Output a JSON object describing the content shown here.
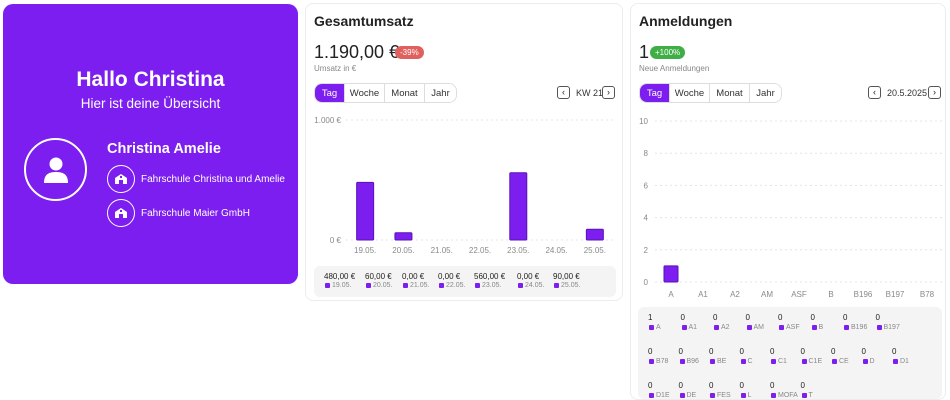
{
  "welcome": {
    "greeting": "Hallo Christina",
    "subtitle": "Hier ist deine Übersicht",
    "user_name": "Christina Amelie",
    "schools": [
      "Fahrschule Christina und Amelie",
      "Fahrschule Maier GmbH"
    ],
    "avatar_icon": "user-icon",
    "school_icon": "school-building-icon",
    "background_color": "#7c1ef0"
  },
  "revenue": {
    "title": "Gesamtumsatz",
    "value": "1.190,00 €",
    "change_badge": "-39%",
    "value_label": "Umsatz in €",
    "segments": [
      "Tag",
      "Woche",
      "Monat",
      "Jahr"
    ],
    "active_segment": "Tag",
    "period_label": "KW 21",
    "summary": [
      {
        "value": "480,00 €",
        "label": "19.05."
      },
      {
        "value": "60,00 €",
        "label": "20.05."
      },
      {
        "value": "0,00 €",
        "label": "21.05."
      },
      {
        "value": "0,00 €",
        "label": "22.05."
      },
      {
        "value": "560,00 €",
        "label": "23.05."
      },
      {
        "value": "0,00 €",
        "label": "24.05."
      },
      {
        "value": "90,00 €",
        "label": "25.05."
      }
    ]
  },
  "registrations": {
    "title": "Anmeldungen",
    "value": "1",
    "change_badge": "+100%",
    "value_label": "Neue Anmeldungen",
    "segments": [
      "Tag",
      "Woche",
      "Monat",
      "Jahr"
    ],
    "active_segment": "Tag",
    "period_label": "20.5.2025",
    "summary_rows": [
      [
        {
          "value": "1",
          "label": "A"
        },
        {
          "value": "0",
          "label": "A1"
        },
        {
          "value": "0",
          "label": "A2"
        },
        {
          "value": "0",
          "label": "AM"
        },
        {
          "value": "0",
          "label": "ASF"
        },
        {
          "value": "0",
          "label": "B"
        },
        {
          "value": "0",
          "label": "B196"
        },
        {
          "value": "0",
          "label": "B197"
        }
      ],
      [
        {
          "value": "0",
          "label": "B78"
        },
        {
          "value": "0",
          "label": "B96"
        },
        {
          "value": "0",
          "label": "BE"
        },
        {
          "value": "0",
          "label": "C"
        },
        {
          "value": "0",
          "label": "C1"
        },
        {
          "value": "0",
          "label": "C1E"
        },
        {
          "value": "0",
          "label": "CE"
        },
        {
          "value": "0",
          "label": "D"
        },
        {
          "value": "0",
          "label": "D1"
        }
      ],
      [
        {
          "value": "0",
          "label": "D1E"
        },
        {
          "value": "0",
          "label": "DE"
        },
        {
          "value": "0",
          "label": "FES"
        },
        {
          "value": "0",
          "label": "L"
        },
        {
          "value": "0",
          "label": "MOFA"
        },
        {
          "value": "0",
          "label": "T"
        }
      ]
    ]
  },
  "chart_data": [
    {
      "type": "bar",
      "categories": [
        "19.05.",
        "20.05.",
        "21.05.",
        "22.05.",
        "23.05.",
        "24.05.",
        "25.05."
      ],
      "values": [
        480,
        60,
        0,
        0,
        560,
        0,
        90
      ],
      "ytick_labels": [
        "1.000 €",
        "0 €"
      ],
      "ylim": [
        0,
        1000
      ],
      "grid": true,
      "color": "#7c1ef0"
    },
    {
      "type": "bar",
      "categories": [
        "A",
        "A1",
        "A2",
        "AM",
        "ASF",
        "B",
        "B196",
        "B197",
        "B78"
      ],
      "values": [
        1,
        0,
        0,
        0,
        0,
        0,
        0,
        0,
        0
      ],
      "yticks": [
        0,
        2,
        4,
        6,
        8,
        10
      ],
      "ylim": [
        0,
        10
      ],
      "grid": true,
      "color": "#7c1ef0"
    }
  ]
}
